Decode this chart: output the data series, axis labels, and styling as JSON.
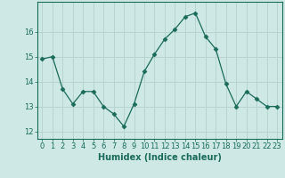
{
  "x": [
    0,
    1,
    2,
    3,
    4,
    5,
    6,
    7,
    8,
    9,
    10,
    11,
    12,
    13,
    14,
    15,
    16,
    17,
    18,
    19,
    20,
    21,
    22,
    23
  ],
  "y": [
    14.9,
    15.0,
    13.7,
    13.1,
    13.6,
    13.6,
    13.0,
    12.7,
    12.2,
    13.1,
    14.4,
    15.1,
    15.7,
    16.1,
    16.6,
    16.75,
    15.8,
    15.3,
    13.9,
    13.0,
    13.6,
    13.3,
    13.0,
    13.0
  ],
  "line_color": "#1a6b5a",
  "marker": "D",
  "marker_size": 2.5,
  "bg_color": "#cde8e5",
  "grid_color": "#b8d4d0",
  "tick_color": "#1a6b5a",
  "xlabel": "Humidex (Indice chaleur)",
  "ylim": [
    11.7,
    17.2
  ],
  "xlim": [
    -0.5,
    23.5
  ],
  "yticks": [
    12,
    13,
    14,
    15,
    16
  ],
  "xticks": [
    0,
    1,
    2,
    3,
    4,
    5,
    6,
    7,
    8,
    9,
    10,
    11,
    12,
    13,
    14,
    15,
    16,
    17,
    18,
    19,
    20,
    21,
    22,
    23
  ],
  "xlabel_fontsize": 7,
  "tick_fontsize": 6
}
